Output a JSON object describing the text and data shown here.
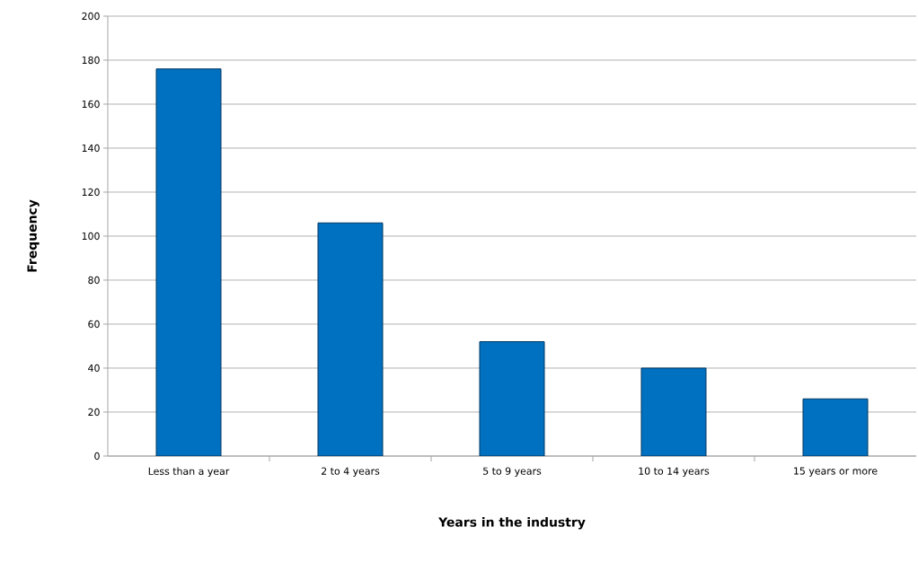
{
  "chart_data": {
    "type": "bar",
    "xlabel": "Years in the industry",
    "ylabel": "Frequency",
    "categories": [
      "Less than a year",
      "2 to 4 years",
      "5 to 9 years",
      "10 to 14 years",
      "15 years or more"
    ],
    "values": [
      176,
      106,
      52,
      40,
      26
    ],
    "color": "#0070c0",
    "ylim": [
      0,
      200
    ],
    "yticks": [
      0,
      20,
      40,
      60,
      80,
      100,
      120,
      140,
      160,
      180,
      200
    ],
    "grid": "y"
  }
}
